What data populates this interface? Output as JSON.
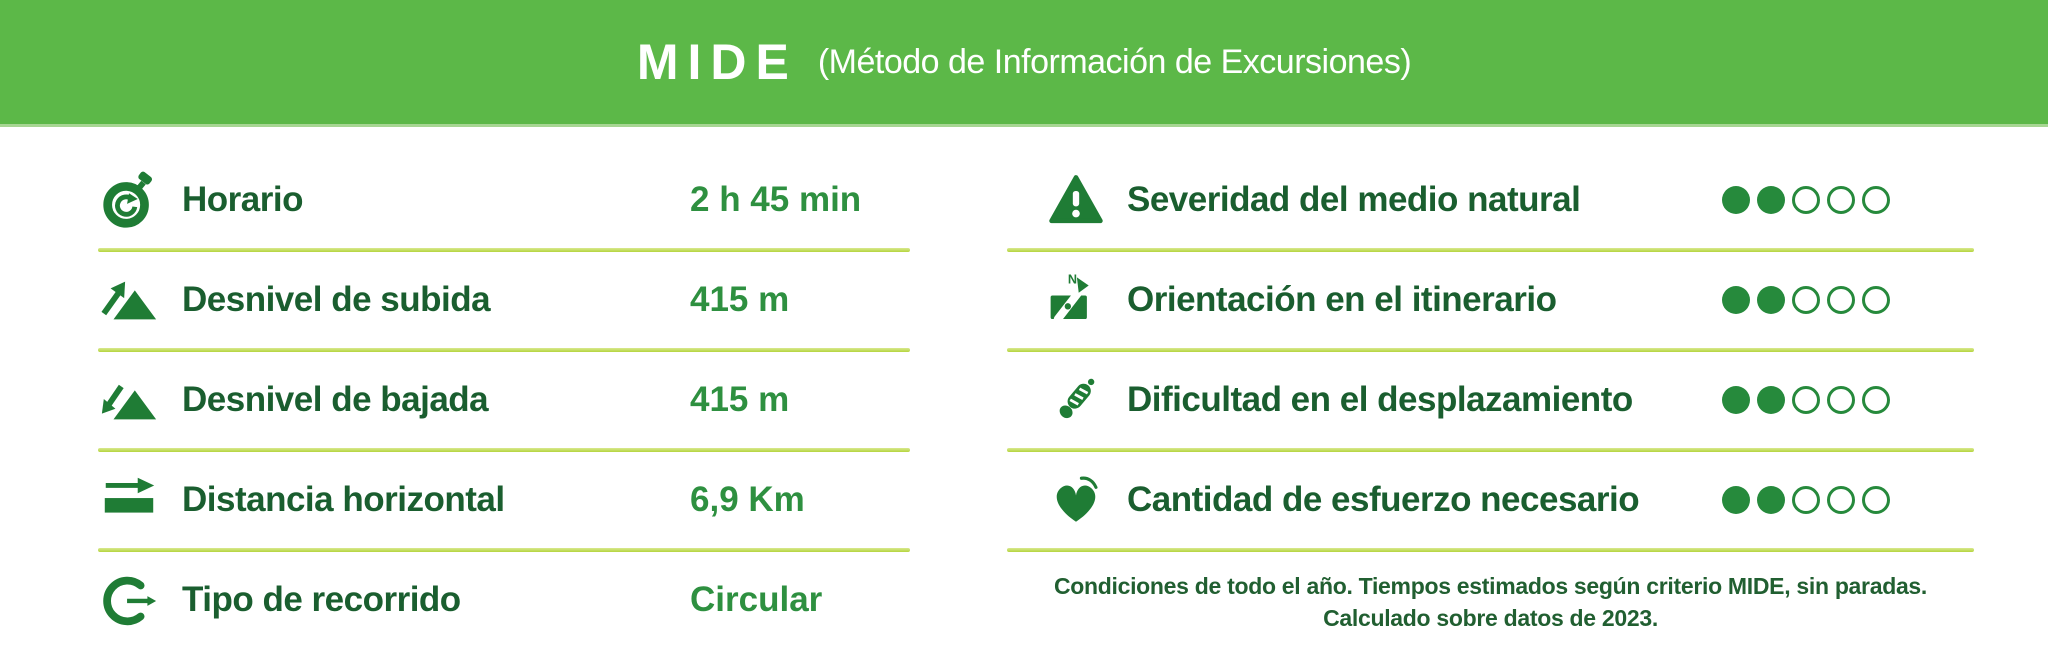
{
  "header": {
    "logo": "MIDE",
    "subtitle": "(Método de Información de Excursiones)"
  },
  "metrics": [
    {
      "icon": "stopwatch",
      "label": "Horario",
      "value": "2 h 45 min"
    },
    {
      "icon": "ascent",
      "label": "Desnivel de subida",
      "value": "415 m"
    },
    {
      "icon": "descent",
      "label": "Desnivel de bajada",
      "value": "415 m"
    },
    {
      "icon": "distance",
      "label": "Distancia horizontal",
      "value": "6,9 Km"
    },
    {
      "icon": "route",
      "label": "Tipo de recorrido",
      "value": "Circular"
    }
  ],
  "ratings": [
    {
      "icon": "warning",
      "label": "Severidad del medio natural",
      "score": 2,
      "max": 5
    },
    {
      "icon": "map-compass",
      "label": "Orientación en el itinerario",
      "score": 2,
      "max": 5
    },
    {
      "icon": "footprint",
      "label": "Dificultad en el desplazamiento",
      "score": 2,
      "max": 5
    },
    {
      "icon": "heart",
      "label": "Cantidad de esfuerzo necesario",
      "score": 2,
      "max": 5
    }
  ],
  "footer": {
    "line1": "Condiciones de todo el año. Tiempos estimados según criterio MIDE, sin paradas.",
    "line2": "Calculado sobre datos de 2023."
  },
  "colors": {
    "header_bg": "#5cb848",
    "header_text": "#ffffff",
    "label_text": "#1a5e2f",
    "value_text": "#2e9040",
    "icon": "#1f7c35",
    "divider": "#b5d53e",
    "dot": "#268a3c",
    "footer_text": "#215f31"
  }
}
